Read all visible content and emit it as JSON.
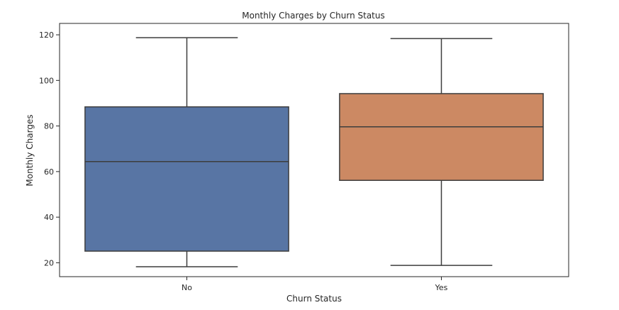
{
  "chart_data": {
    "type": "box",
    "title": "Monthly Charges by Churn Status",
    "xlabel": "Churn Status",
    "ylabel": "Monthly Charges",
    "ylim": [
      13.9,
      125
    ],
    "yticks": [
      20,
      40,
      60,
      80,
      100,
      120
    ],
    "grid": false,
    "categories": [
      "No",
      "Yes"
    ],
    "boxes": [
      {
        "category": "No",
        "whisker_low": 18.25,
        "q1": 25.1,
        "median": 64.4,
        "q3": 88.4,
        "whisker_high": 118.75,
        "color": "#5875a4"
      },
      {
        "category": "Yes",
        "whisker_low": 18.85,
        "q1": 56.15,
        "median": 79.65,
        "q3": 94.2,
        "whisker_high": 118.35,
        "color": "#cc8963"
      }
    ]
  }
}
